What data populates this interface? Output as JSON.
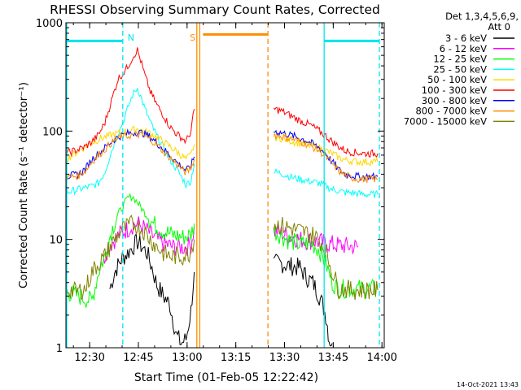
{
  "chart_data": {
    "type": "line",
    "title": "RHESSI Observing Summary Count Rates, Corrected",
    "xlabel": "Start Time (01-Feb-05 12:22:42)",
    "ylabel": "Corrected Count Rate (s⁻¹ detector⁻¹)",
    "yscale": "log",
    "ylim": [
      1,
      1000
    ],
    "xlim_minutes": [
      0,
      98
    ],
    "x_tick_labels": [
      "12:30",
      "12:45",
      "13:00",
      "13:15",
      "13:30",
      "13:45",
      "14:00"
    ],
    "x_tick_minutes": [
      7.3,
      22.3,
      37.3,
      52.3,
      67.3,
      82.3,
      97.3
    ],
    "y_tick_labels": [
      "1",
      "10",
      "100",
      "1000"
    ],
    "y_tick_values": [
      1,
      10,
      100,
      1000
    ],
    "legend_header": [
      "Det 1,3,4,5,6,9,",
      "Att 0"
    ],
    "legend_position": "right",
    "footer_date": "14-Oct-2021 13:43",
    "annotations": [
      {
        "label": "N",
        "color": "#00e5ee",
        "x": 17.5
      },
      {
        "label": "S",
        "color": "#ff8c00",
        "x": 39.5
      }
    ],
    "night_lines": [
      {
        "x": 0,
        "style": "solid",
        "color": "#00e5ee"
      },
      {
        "x": 17.5,
        "style": "dashed",
        "color": "#00e5ee"
      },
      {
        "x": 79.5,
        "style": "solid",
        "color": "#00e5ee"
      },
      {
        "x": 96.5,
        "style": "dashed",
        "color": "#00e5ee"
      }
    ],
    "night_bars": [
      {
        "x0": 0,
        "x1": 17.5,
        "y": 680,
        "color": "#00e5ee"
      },
      {
        "x0": 79.5,
        "x1": 96.5,
        "y": 680,
        "color": "#00e5ee"
      }
    ],
    "saa_lines": [
      {
        "x": 41.2,
        "style": "solid",
        "color": "#ff8c00"
      },
      {
        "x": 62.2,
        "style": "dashed",
        "color": "#ff8c00"
      }
    ],
    "saa_bar": {
      "x0": 42.2,
      "x1": 62.2,
      "y": 780,
      "color": "#ff8c00"
    },
    "series": [
      {
        "name": "3 - 6 keV",
        "color": "#000000",
        "segments": [
          {
            "x": [
              13.5,
              15,
              17,
              19,
              20.5,
              22,
              23.5,
              25,
              26.5,
              28,
              30,
              32,
              34,
              35.5,
              37,
              38.5,
              39.5
            ],
            "y": [
              3.5,
              5,
              6.5,
              7.5,
              8.5,
              9.5,
              8.5,
              7.5,
              5.5,
              3.8,
              3,
              2.5,
              1.3,
              1.1,
              1.2,
              2.2,
              5
            ]
          },
          {
            "x": [
              64,
              66,
              68,
              70,
              72,
              74,
              76,
              77,
              78,
              79,
              80,
              80.5,
              81,
              82
            ],
            "y": [
              6,
              6,
              5.8,
              5.6,
              5.5,
              4.5,
              4,
              3.5,
              3,
              2.5,
              2,
              1.6,
              1.2,
              1.1
            ]
          }
        ]
      },
      {
        "name": "6 - 12 keV",
        "color": "#ff00ff",
        "segments": [
          {
            "x": [
              11.5,
              13,
              15,
              17,
              19,
              20.5,
              22,
              23.5,
              25,
              27,
              29,
              31,
              33,
              35,
              37,
              38.5,
              39.5
            ],
            "y": [
              6.5,
              8.5,
              10,
              11.5,
              12.5,
              13.5,
              14,
              13,
              12,
              10.5,
              9.5,
              9,
              8.5,
              8.5,
              8.5,
              9,
              13
            ]
          },
          {
            "x": [
              64,
              66,
              68,
              70,
              72,
              74,
              76,
              78,
              80,
              82,
              84,
              86,
              88,
              90
            ],
            "y": [
              12,
              11.5,
              11,
              10.5,
              10,
              9.8,
              9.7,
              9.5,
              9.2,
              9,
              8.8,
              8.7,
              8.6,
              8.5
            ]
          }
        ]
      },
      {
        "name": "12 - 25 keV",
        "color": "#00ff00",
        "segments": [
          {
            "x": [
              0,
              4,
              8,
              10,
              12,
              14,
              16,
              17.5,
              19,
              20.5,
              22,
              24,
              26,
              28,
              30,
              33,
              36,
              38.5,
              39.5
            ],
            "y": [
              3.3,
              3,
              2.7,
              5,
              7,
              12,
              17,
              20,
              24,
              25,
              22,
              18,
              15,
              13,
              12,
              11,
              10.5,
              11,
              14
            ]
          },
          {
            "x": [
              64,
              66,
              68,
              70,
              72,
              74,
              76,
              78,
              80,
              82,
              84,
              86,
              88,
              90,
              92,
              94,
              96
            ],
            "y": [
              12,
              11,
              10,
              9.5,
              9,
              9.2,
              9,
              8,
              6,
              4,
              3.5,
              3.5,
              3.5,
              3.5,
              3.5,
              3.5,
              3.5
            ]
          }
        ]
      },
      {
        "name": "25 - 50 keV",
        "color": "#00ffff",
        "segments": [
          {
            "x": [
              0,
              2,
              4,
              6,
              8,
              10,
              12,
              14,
              16,
              17.5,
              19,
              20.5,
              22,
              23,
              24,
              26,
              28,
              30,
              32,
              34,
              36,
              37,
              38.5,
              39.5
            ],
            "y": [
              27,
              28,
              29,
              30,
              31,
              33,
              42,
              65,
              95,
              120,
              160,
              215,
              250,
              210,
              170,
              120,
              90,
              70,
              55,
              45,
              36,
              32,
              35,
              50
            ]
          },
          {
            "x": [
              64,
              66,
              68,
              70,
              72,
              74,
              76,
              78,
              80,
              82,
              84,
              86,
              88,
              90,
              92,
              94,
              96
            ],
            "y": [
              42,
              41,
              39,
              37,
              36,
              35,
              34,
              33,
              31,
              29,
              28,
              27,
              27,
              26.5,
              26,
              26,
              26
            ]
          }
        ]
      },
      {
        "name": "50 - 100 keV",
        "color": "#ffd700",
        "segments": [
          {
            "x": [
              0,
              2,
              4,
              6,
              8,
              10,
              12,
              14,
              16,
              17.5,
              19,
              20.5,
              22,
              24,
              26,
              28,
              30,
              32,
              34,
              36,
              37,
              38.5,
              39.5
            ],
            "y": [
              55,
              60,
              66,
              72,
              78,
              84,
              88,
              92,
              95,
              98,
              100,
              102,
              105,
              100,
              95,
              88,
              80,
              72,
              65,
              58,
              55,
              60,
              75
            ]
          },
          {
            "x": [
              64,
              66,
              68,
              70,
              72,
              74,
              76,
              78,
              80,
              82,
              84,
              86,
              88,
              90,
              92,
              94,
              96
            ],
            "y": [
              88,
              86,
              83,
              80,
              77,
              75,
              72,
              70,
              66,
              62,
              57,
              54,
              53,
              52,
              52,
              52,
              52
            ]
          }
        ]
      },
      {
        "name": "100 - 300 keV",
        "color": "#ff0000",
        "segments": [
          {
            "x": [
              0,
              2,
              4,
              6,
              8,
              10,
              12,
              14,
              16,
              17.5,
              19,
              20.5,
              22,
              23,
              24,
              26,
              28,
              30,
              32,
              34,
              36,
              37,
              38.5,
              39.5
            ],
            "y": [
              62,
              65,
              68,
              72,
              80,
              92,
              120,
              190,
              300,
              340,
              390,
              480,
              560,
              450,
              350,
              230,
              175,
              140,
              110,
              95,
              85,
              80,
              100,
              160
            ]
          },
          {
            "x": [
              64,
              66,
              68,
              70,
              72,
              74,
              76,
              78,
              80,
              82,
              84,
              86,
              88,
              90,
              92,
              94,
              96
            ],
            "y": [
              160,
              155,
              145,
              135,
              125,
              118,
              110,
              100,
              90,
              80,
              72,
              66,
              64,
              63,
              62,
              62,
              62
            ]
          }
        ]
      },
      {
        "name": "300 - 800 keV",
        "color": "#0000ff",
        "segments": [
          {
            "x": [
              0,
              2,
              4,
              6,
              8,
              10,
              12,
              14,
              16,
              17.5,
              19,
              20.5,
              22,
              24,
              26,
              28,
              30,
              32,
              34,
              36,
              37,
              38.5,
              39.5
            ],
            "y": [
              38,
              39,
              40,
              45,
              55,
              62,
              70,
              80,
              88,
              92,
              95,
              96,
              98,
              95,
              88,
              78,
              68,
              60,
              52,
              46,
              43,
              48,
              58
            ]
          },
          {
            "x": [
              64,
              66,
              68,
              70,
              72,
              74,
              76,
              78,
              80,
              82,
              84,
              86,
              88,
              90,
              92,
              94,
              96
            ],
            "y": [
              100,
              97,
              94,
              90,
              86,
              82,
              76,
              70,
              62,
              52,
              44,
              40,
              39,
              38,
              38,
              38,
              38
            ]
          }
        ]
      },
      {
        "name": "800 - 7000 keV",
        "color": "#ff8c00",
        "segments": [
          {
            "x": [
              0,
              2,
              4,
              6,
              8,
              10,
              12,
              14,
              16,
              17.5,
              19,
              20.5,
              22,
              24,
              26,
              28,
              30,
              32,
              34,
              36,
              37,
              38.5,
              39.5
            ],
            "y": [
              37,
              38,
              39,
              43,
              52,
              60,
              68,
              78,
              85,
              88,
              90,
              92,
              93,
              90,
              84,
              75,
              65,
              57,
              50,
              44,
              41,
              46,
              55
            ]
          },
          {
            "x": [
              64,
              66,
              68,
              70,
              72,
              74,
              76,
              78,
              80,
              82,
              84,
              86,
              88,
              90,
              92,
              94,
              96
            ],
            "y": [
              92,
              90,
              87,
              84,
              80,
              76,
              71,
              66,
              58,
              50,
              43,
              39,
              37,
              36,
              36,
              36,
              36
            ]
          }
        ]
      },
      {
        "name": "7000 - 15000 keV",
        "color": "#808000",
        "segments": [
          {
            "x": [
              0,
              3,
              6,
              8,
              10,
              12,
              14,
              16,
              17.5,
              19,
              20.5,
              22,
              24,
              26,
              28,
              30,
              32,
              34,
              36,
              38,
              39.5
            ],
            "y": [
              3.5,
              3.3,
              3.5,
              5,
              6,
              7,
              9,
              11,
              12.5,
              13,
              14,
              13.5,
              12,
              10,
              8.5,
              7.5,
              7,
              7,
              7,
              7.5,
              10
            ]
          },
          {
            "x": [
              64,
              66,
              68,
              70,
              72,
              74,
              76,
              78,
              80,
              82,
              84,
              86,
              88,
              90,
              92,
              94,
              96
            ],
            "y": [
              14,
              13.5,
              13,
              12.5,
              12,
              11.5,
              11,
              10,
              8,
              5,
              3.5,
              3.5,
              3.4,
              3.4,
              3.4,
              3.4,
              3.4
            ]
          }
        ]
      }
    ]
  }
}
